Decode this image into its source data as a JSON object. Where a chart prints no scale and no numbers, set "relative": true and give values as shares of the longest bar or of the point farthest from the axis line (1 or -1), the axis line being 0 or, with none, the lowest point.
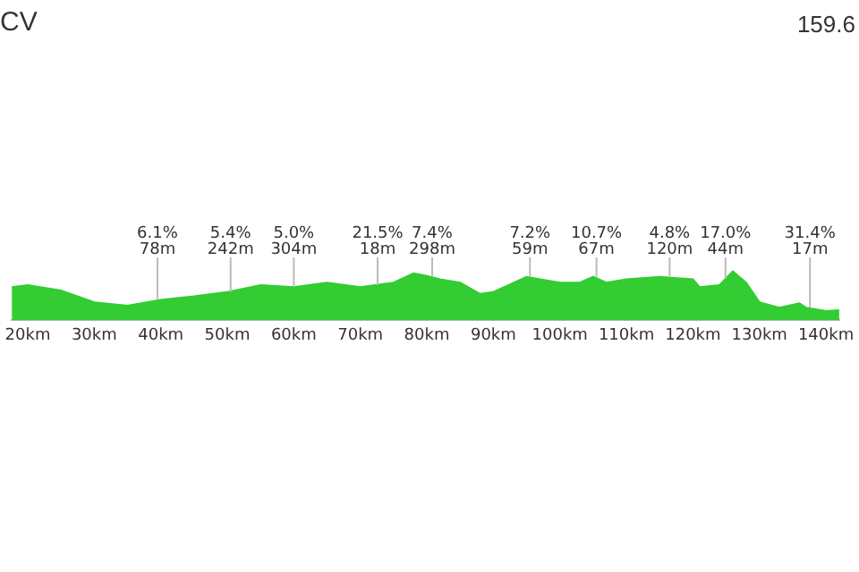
{
  "chart_data": {
    "type": "area",
    "title": "CV",
    "relative": true,
    "color": "#33cc33",
    "legend": false,
    "x": [
      17.6,
      20,
      25,
      30,
      35,
      40,
      45,
      50,
      55,
      60,
      65,
      70,
      75,
      78,
      80,
      82,
      85,
      88,
      90,
      95,
      100,
      103,
      105,
      107,
      110,
      115,
      120,
      121,
      124,
      126,
      128,
      130,
      133,
      136,
      137,
      140,
      142
    ],
    "values": [
      0.68,
      0.72,
      0.61,
      0.37,
      0.3,
      0.42,
      0.49,
      0.58,
      0.72,
      0.68,
      0.77,
      0.68,
      0.77,
      0.96,
      0.91,
      0.84,
      0.77,
      0.54,
      0.58,
      0.89,
      0.77,
      0.77,
      0.89,
      0.77,
      0.84,
      0.89,
      0.84,
      0.68,
      0.72,
      1,
      0.77,
      0.37,
      0.26,
      0.35,
      0.26,
      0.19,
      0.21
    ],
    "xlim": [
      17.6,
      142
    ],
    "xticks": [
      {
        "value": 20,
        "label": "20km"
      },
      {
        "value": 30,
        "label": "30km"
      },
      {
        "value": 40,
        "label": "40km"
      },
      {
        "value": 50,
        "label": "50km"
      },
      {
        "value": 60,
        "label": "60km"
      },
      {
        "value": 70,
        "label": "70km"
      },
      {
        "value": 80,
        "label": "80km"
      },
      {
        "value": 90,
        "label": "90km"
      },
      {
        "value": 100,
        "label": "100km"
      },
      {
        "value": 110,
        "label": "110km"
      },
      {
        "value": 120,
        "label": "120km"
      },
      {
        "value": 130,
        "label": "130km"
      },
      {
        "value": 140,
        "label": "140km"
      }
    ],
    "annotations": [
      "159.6",
      {
        "text": "6.1%\n78m",
        "x": 39.5,
        "y": 0.42
      },
      {
        "text": "5.4%\n242m",
        "x": 50.5,
        "y": 0.58
      },
      {
        "text": "5.0%\n304m",
        "x": 60,
        "y": 0.68
      },
      {
        "text": "21.5%\n18m",
        "x": 72.6,
        "y": 0.72
      },
      {
        "text": "7.4%\n298m",
        "x": 80.8,
        "y": 0.9
      },
      {
        "text": "7.2%\n59m",
        "x": 95.5,
        "y": 0.89
      },
      {
        "text": "10.7%\n67m",
        "x": 105.5,
        "y": 0.89
      },
      {
        "text": "4.8%\n120m",
        "x": 116.5,
        "y": 0.89
      },
      {
        "text": "17.0%\n44m",
        "x": 124.9,
        "y": 0.85
      },
      {
        "text": "31.4%\n17m",
        "x": 137.6,
        "y": 0.26
      }
    ]
  }
}
